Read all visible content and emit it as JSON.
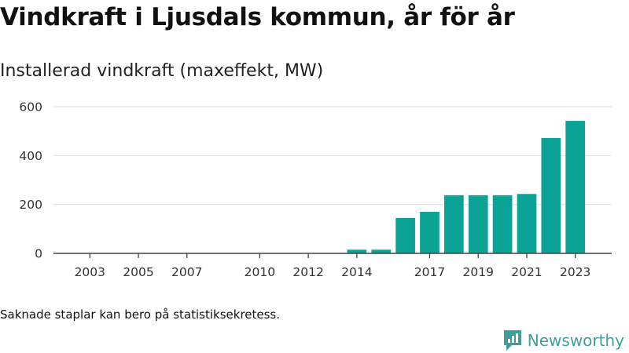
{
  "header": {
    "title": "Vindkraft i Ljusdals kommun, år för år",
    "subtitle": "Installerad vindkraft (maxeffekt, MW)"
  },
  "footer": {
    "note": "Saknade staplar kan bero på statistiksekretess.",
    "brand": "Newsworthy",
    "brand_icon": "newsworthy-logo-icon"
  },
  "colors": {
    "bar": "#0aa396",
    "grid": "#e3e3e3",
    "axis": "#444444",
    "brand": "#3f9e9a"
  },
  "chart_data": {
    "type": "bar",
    "title": "Installerad vindkraft (maxeffekt, MW)",
    "xlabel": "",
    "ylabel": "",
    "x": [
      2002,
      2003,
      2004,
      2005,
      2006,
      2007,
      2008,
      2009,
      2010,
      2011,
      2012,
      2013,
      2014,
      2015,
      2016,
      2017,
      2018,
      2019,
      2020,
      2021,
      2022,
      2023
    ],
    "values": [
      0,
      0,
      0,
      0,
      0,
      0,
      0,
      0,
      0,
      0,
      0,
      0,
      15,
      15,
      145,
      170,
      238,
      238,
      238,
      243,
      472,
      542
    ],
    "x_tick_labels": [
      "2003",
      "2005",
      "2007",
      "2010",
      "2012",
      "2014",
      "2017",
      "2019",
      "2021",
      "2023"
    ],
    "y_ticks": [
      0,
      200,
      400,
      600
    ],
    "ylim": [
      0,
      600
    ],
    "xlim": [
      2001.5,
      2024.5
    ],
    "grid": true,
    "legend": "none"
  }
}
